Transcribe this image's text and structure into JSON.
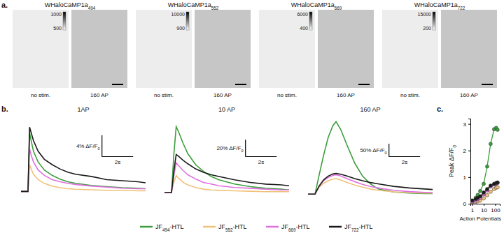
{
  "panel_labels": [
    "a.",
    "b.",
    "c."
  ],
  "images": {
    "panels": [
      {
        "title": "WHaloCaMP1a494",
        "colorbar": {
          "max": 1000,
          "min": 500
        },
        "images": [
          "no stim.",
          "160 AP"
        ]
      },
      {
        "title": "WHaloCaMP1a552",
        "colorbar": {
          "max": 10000,
          "min": 900
        },
        "images": [
          "no stim.",
          "160 AP"
        ]
      },
      {
        "title": "WHaloCaMP1a669",
        "colorbar": {
          "max": 6000,
          "min": 400
        },
        "images": [
          "no stim.",
          "160 AP"
        ]
      },
      {
        "title": "WHaloCaMP1a722",
        "colorbar": {
          "max": 15000,
          "min": 200
        },
        "images": [
          "no stim.",
          "160 AP"
        ]
      }
    ]
  },
  "chart_data": [
    {
      "type": "line",
      "title": "1AP",
      "tick_labels": false,
      "legend": "bottom",
      "xlim": [
        -0.5,
        7.5
      ],
      "ylim": [
        -1,
        14
      ],
      "scale_bar": {
        "y": 4,
        "y_label": "4% ΔF/F0",
        "x": 2,
        "x_label": "2s"
      },
      "x": [
        -0.5,
        -0.05,
        0.05,
        0.15,
        0.3,
        0.6,
        1,
        1.5,
        2,
        2.5,
        3,
        4,
        5,
        6,
        7,
        7.5
      ],
      "series": [
        {
          "name": "JF494-HTL",
          "color": "#3c9e3c",
          "values": [
            0,
            0,
            11,
            9.5,
            7.5,
            5.5,
            4,
            3,
            2.3,
            1.8,
            1.5,
            1.1,
            0.9,
            0.7,
            0.6,
            0.5
          ]
        },
        {
          "name": "JF552-HTL",
          "color": "#f0c27a",
          "values": [
            0,
            0,
            5,
            4.2,
            3.2,
            2.2,
            1.5,
            1,
            0.7,
            0.5,
            0.4,
            0.3,
            0.2,
            0.2,
            0.1,
            0.1
          ]
        },
        {
          "name": "JF669-HTL",
          "color": "#e070e0",
          "values": [
            0,
            0,
            8,
            6.8,
            5.5,
            4,
            3,
            2.2,
            1.8,
            1.5,
            1.3,
            1,
            0.8,
            0.6,
            0.5,
            0.5
          ]
        },
        {
          "name": "JF722-HTL",
          "color": "#1a1a1a",
          "values": [
            0,
            0,
            12,
            11,
            9.5,
            7.5,
            6,
            5,
            4.2,
            3.6,
            3.2,
            2.8,
            2.2,
            2,
            1.8,
            1.6
          ]
        }
      ]
    },
    {
      "type": "line",
      "title": "10 AP",
      "tick_labels": false,
      "xlim": [
        -0.5,
        7.5
      ],
      "ylim": [
        -5,
        90
      ],
      "scale_bar": {
        "y": 20,
        "y_label": "20% ΔF/F0",
        "x": 2,
        "x_label": "2s"
      },
      "x": [
        -0.5,
        -0.05,
        0.1,
        0.25,
        0.4,
        0.7,
        1,
        1.5,
        2,
        2.5,
        3,
        4,
        5,
        6,
        7,
        7.5
      ],
      "series": [
        {
          "name": "JF494-HTL",
          "color": "#3c9e3c",
          "values": [
            0,
            0,
            45,
            78,
            72,
            58,
            46,
            33,
            25,
            19,
            15,
            10,
            7,
            5,
            4,
            3
          ]
        },
        {
          "name": "JF552-HTL",
          "color": "#f0c27a",
          "values": [
            0,
            0,
            12,
            20,
            17,
            12,
            9,
            6,
            4,
            3,
            2.5,
            2,
            1.5,
            1,
            1,
            1
          ]
        },
        {
          "name": "JF669-HTL",
          "color": "#e070e0",
          "values": [
            0,
            0,
            20,
            35,
            32,
            26,
            21,
            16,
            12,
            10,
            8,
            6,
            5,
            4,
            3,
            3
          ]
        },
        {
          "name": "JF722-HTL",
          "color": "#1a1a1a",
          "values": [
            0,
            0,
            25,
            45,
            43,
            38,
            34,
            28,
            24,
            21,
            19,
            15,
            12,
            10,
            9,
            8
          ]
        }
      ]
    },
    {
      "type": "line",
      "title": "160 AP",
      "tick_labels": false,
      "xlim": [
        -0.5,
        7.5
      ],
      "ylim": [
        -10,
        300
      ],
      "scale_bar": {
        "y": 50,
        "y_label": "50% ΔF/F0",
        "x": 2,
        "x_label": "2s"
      },
      "x": [
        -0.5,
        -0.05,
        0.2,
        0.5,
        0.8,
        1.1,
        1.3,
        1.6,
        2,
        2.5,
        3,
        3.5,
        4,
        5,
        6,
        7,
        7.5
      ],
      "series": [
        {
          "name": "JF494-HTL",
          "color": "#3c9e3c",
          "values": [
            0,
            0,
            70,
            150,
            220,
            265,
            280,
            250,
            190,
            120,
            70,
            40,
            20,
            8,
            4,
            2,
            2
          ]
        },
        {
          "name": "JF552-HTL",
          "color": "#f0c27a",
          "values": [
            0,
            0,
            25,
            42,
            52,
            58,
            60,
            55,
            45,
            35,
            27,
            20,
            15,
            9,
            6,
            4,
            4
          ]
        },
        {
          "name": "JF669-HTL",
          "color": "#e070e0",
          "values": [
            0,
            0,
            30,
            52,
            65,
            72,
            75,
            70,
            60,
            48,
            38,
            30,
            24,
            15,
            10,
            7,
            6
          ]
        },
        {
          "name": "JF722-HTL",
          "color": "#1a1a1a",
          "values": [
            0,
            0,
            30,
            55,
            70,
            78,
            80,
            77,
            70,
            60,
            52,
            45,
            40,
            30,
            24,
            20,
            18
          ]
        }
      ]
    },
    {
      "type": "line",
      "marker": "circle",
      "log": "x",
      "x_label": "Action Potentials",
      "y_label": "Peak ΔF/F0",
      "xlim": [
        0.7,
        250
      ],
      "ylim": [
        0,
        3.2
      ],
      "xticks": [
        1,
        10,
        100
      ],
      "yticks": [
        0,
        1,
        2,
        3
      ],
      "x": [
        1,
        2,
        3,
        5,
        10,
        20,
        40,
        80,
        120,
        160
      ],
      "series": [
        {
          "name": "JF494-HTL",
          "color": "#3c9e3c",
          "values": [
            0.12,
            0.22,
            0.33,
            0.48,
            0.75,
            1.4,
            2.25,
            2.8,
            2.85,
            2.78
          ]
        },
        {
          "name": "JF552-HTL",
          "color": "#f0c27a",
          "values": [
            0.05,
            0.07,
            0.09,
            0.12,
            0.2,
            0.32,
            0.45,
            0.55,
            0.6,
            0.62
          ]
        },
        {
          "name": "JF669-HTL",
          "color": "#e070e0",
          "values": [
            0.08,
            0.12,
            0.17,
            0.23,
            0.35,
            0.5,
            0.65,
            0.72,
            0.75,
            0.78
          ]
        },
        {
          "name": "JF722-HTL",
          "color": "#1a1a1a",
          "values": [
            0.12,
            0.18,
            0.22,
            0.28,
            0.42,
            0.55,
            0.68,
            0.75,
            0.78,
            0.8
          ]
        }
      ]
    }
  ]
}
